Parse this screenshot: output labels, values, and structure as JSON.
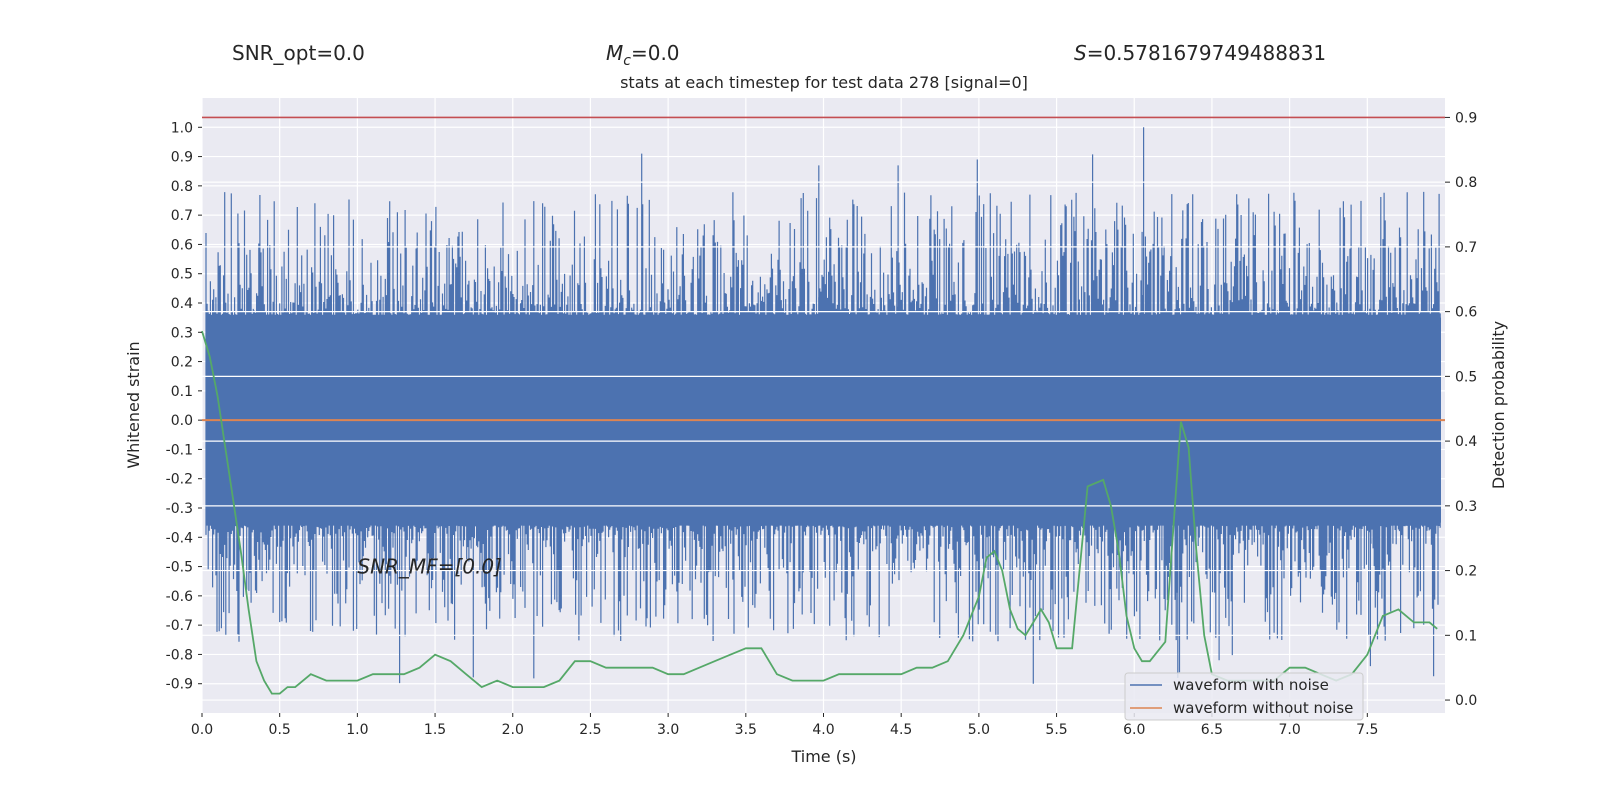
{
  "header": {
    "snr_opt": "SNR_opt=0.0",
    "mc_symbol": "M",
    "mc_subscript": "c",
    "mc_value": "=0.0",
    "s_symbol": "S",
    "s_value": "=0.5781679749488831"
  },
  "chart_data": {
    "type": "line",
    "title": "stats at each timestep for test data 278 [signal=0]",
    "xlabel": "Time (s)",
    "ylabel": "Whitened strain",
    "y2label": "Detection probability",
    "xlim": [
      0.0,
      8.0
    ],
    "ylim": [
      -1.0,
      1.1
    ],
    "y2lim": [
      -0.02,
      0.93
    ],
    "x_ticks": [
      "0.0",
      "0.5",
      "1.0",
      "1.5",
      "2.0",
      "2.5",
      "3.0",
      "3.5",
      "4.0",
      "4.5",
      "5.0",
      "5.5",
      "6.0",
      "6.5",
      "7.0",
      "7.5"
    ],
    "y_ticks": [
      "1.0",
      "0.9",
      "0.8",
      "0.7",
      "0.6",
      "0.5",
      "0.4",
      "0.3",
      "0.2",
      "0.1",
      "0.0",
      "-0.1",
      "-0.2",
      "-0.3",
      "-0.4",
      "-0.5",
      "-0.6",
      "-0.7",
      "-0.8",
      "-0.9"
    ],
    "y2_ticks": [
      "0.9",
      "0.8",
      "0.7",
      "0.6",
      "0.5",
      "0.4",
      "0.3",
      "0.2",
      "0.1",
      "0.0"
    ],
    "grid": true,
    "legend_position": "bottom-right",
    "threshold_line": {
      "y2": 0.9,
      "color": "#c44e52"
    },
    "annotation": {
      "text": "SNR_MF=[0.0]",
      "x": 1.0,
      "y": -0.5
    },
    "series": [
      {
        "name": "waveform with noise",
        "color": "#4c72b0",
        "description": "dense noise with typical amplitude ±0.35 and peaks up to 1.0 and down to -0.9"
      },
      {
        "name": "waveform without noise",
        "color": "#dd8452",
        "x": [
          0.0,
          8.0
        ],
        "y": [
          0.0,
          0.0
        ]
      },
      {
        "color": "#55a868",
        "axis": "right",
        "x": [
          0.0,
          0.05,
          0.1,
          0.15,
          0.2,
          0.25,
          0.3,
          0.35,
          0.4,
          0.45,
          0.5,
          0.55,
          0.6,
          0.7,
          0.8,
          0.9,
          1.0,
          1.1,
          1.2,
          1.3,
          1.4,
          1.5,
          1.6,
          1.7,
          1.8,
          1.9,
          2.0,
          2.1,
          2.2,
          2.3,
          2.4,
          2.5,
          2.6,
          2.7,
          2.8,
          2.9,
          3.0,
          3.1,
          3.2,
          3.3,
          3.4,
          3.5,
          3.6,
          3.7,
          3.8,
          3.9,
          4.0,
          4.1,
          4.2,
          4.3,
          4.4,
          4.5,
          4.6,
          4.7,
          4.8,
          4.9,
          5.0,
          5.05,
          5.1,
          5.15,
          5.2,
          5.25,
          5.3,
          5.35,
          5.4,
          5.45,
          5.5,
          5.6,
          5.7,
          5.8,
          5.85,
          5.9,
          5.95,
          6.0,
          6.05,
          6.1,
          6.2,
          6.3,
          6.35,
          6.4,
          6.45,
          6.5,
          6.6,
          6.7,
          6.8,
          6.9,
          7.0,
          7.1,
          7.2,
          7.3,
          7.4,
          7.5,
          7.6,
          7.7,
          7.8,
          7.9,
          7.95
        ],
        "y": [
          0.57,
          0.53,
          0.47,
          0.39,
          0.31,
          0.23,
          0.14,
          0.06,
          0.03,
          0.01,
          0.01,
          0.02,
          0.02,
          0.04,
          0.03,
          0.03,
          0.03,
          0.04,
          0.04,
          0.04,
          0.05,
          0.07,
          0.06,
          0.04,
          0.02,
          0.03,
          0.02,
          0.02,
          0.02,
          0.03,
          0.06,
          0.06,
          0.05,
          0.05,
          0.05,
          0.05,
          0.04,
          0.04,
          0.05,
          0.06,
          0.07,
          0.08,
          0.08,
          0.04,
          0.03,
          0.03,
          0.03,
          0.04,
          0.04,
          0.04,
          0.04,
          0.04,
          0.05,
          0.05,
          0.06,
          0.1,
          0.16,
          0.22,
          0.23,
          0.2,
          0.14,
          0.11,
          0.1,
          0.12,
          0.14,
          0.12,
          0.08,
          0.08,
          0.33,
          0.34,
          0.3,
          0.23,
          0.13,
          0.08,
          0.06,
          0.06,
          0.09,
          0.43,
          0.39,
          0.23,
          0.1,
          0.04,
          0.03,
          0.03,
          0.03,
          0.03,
          0.05,
          0.05,
          0.04,
          0.03,
          0.04,
          0.07,
          0.13,
          0.14,
          0.12,
          0.12,
          0.11
        ]
      }
    ]
  }
}
